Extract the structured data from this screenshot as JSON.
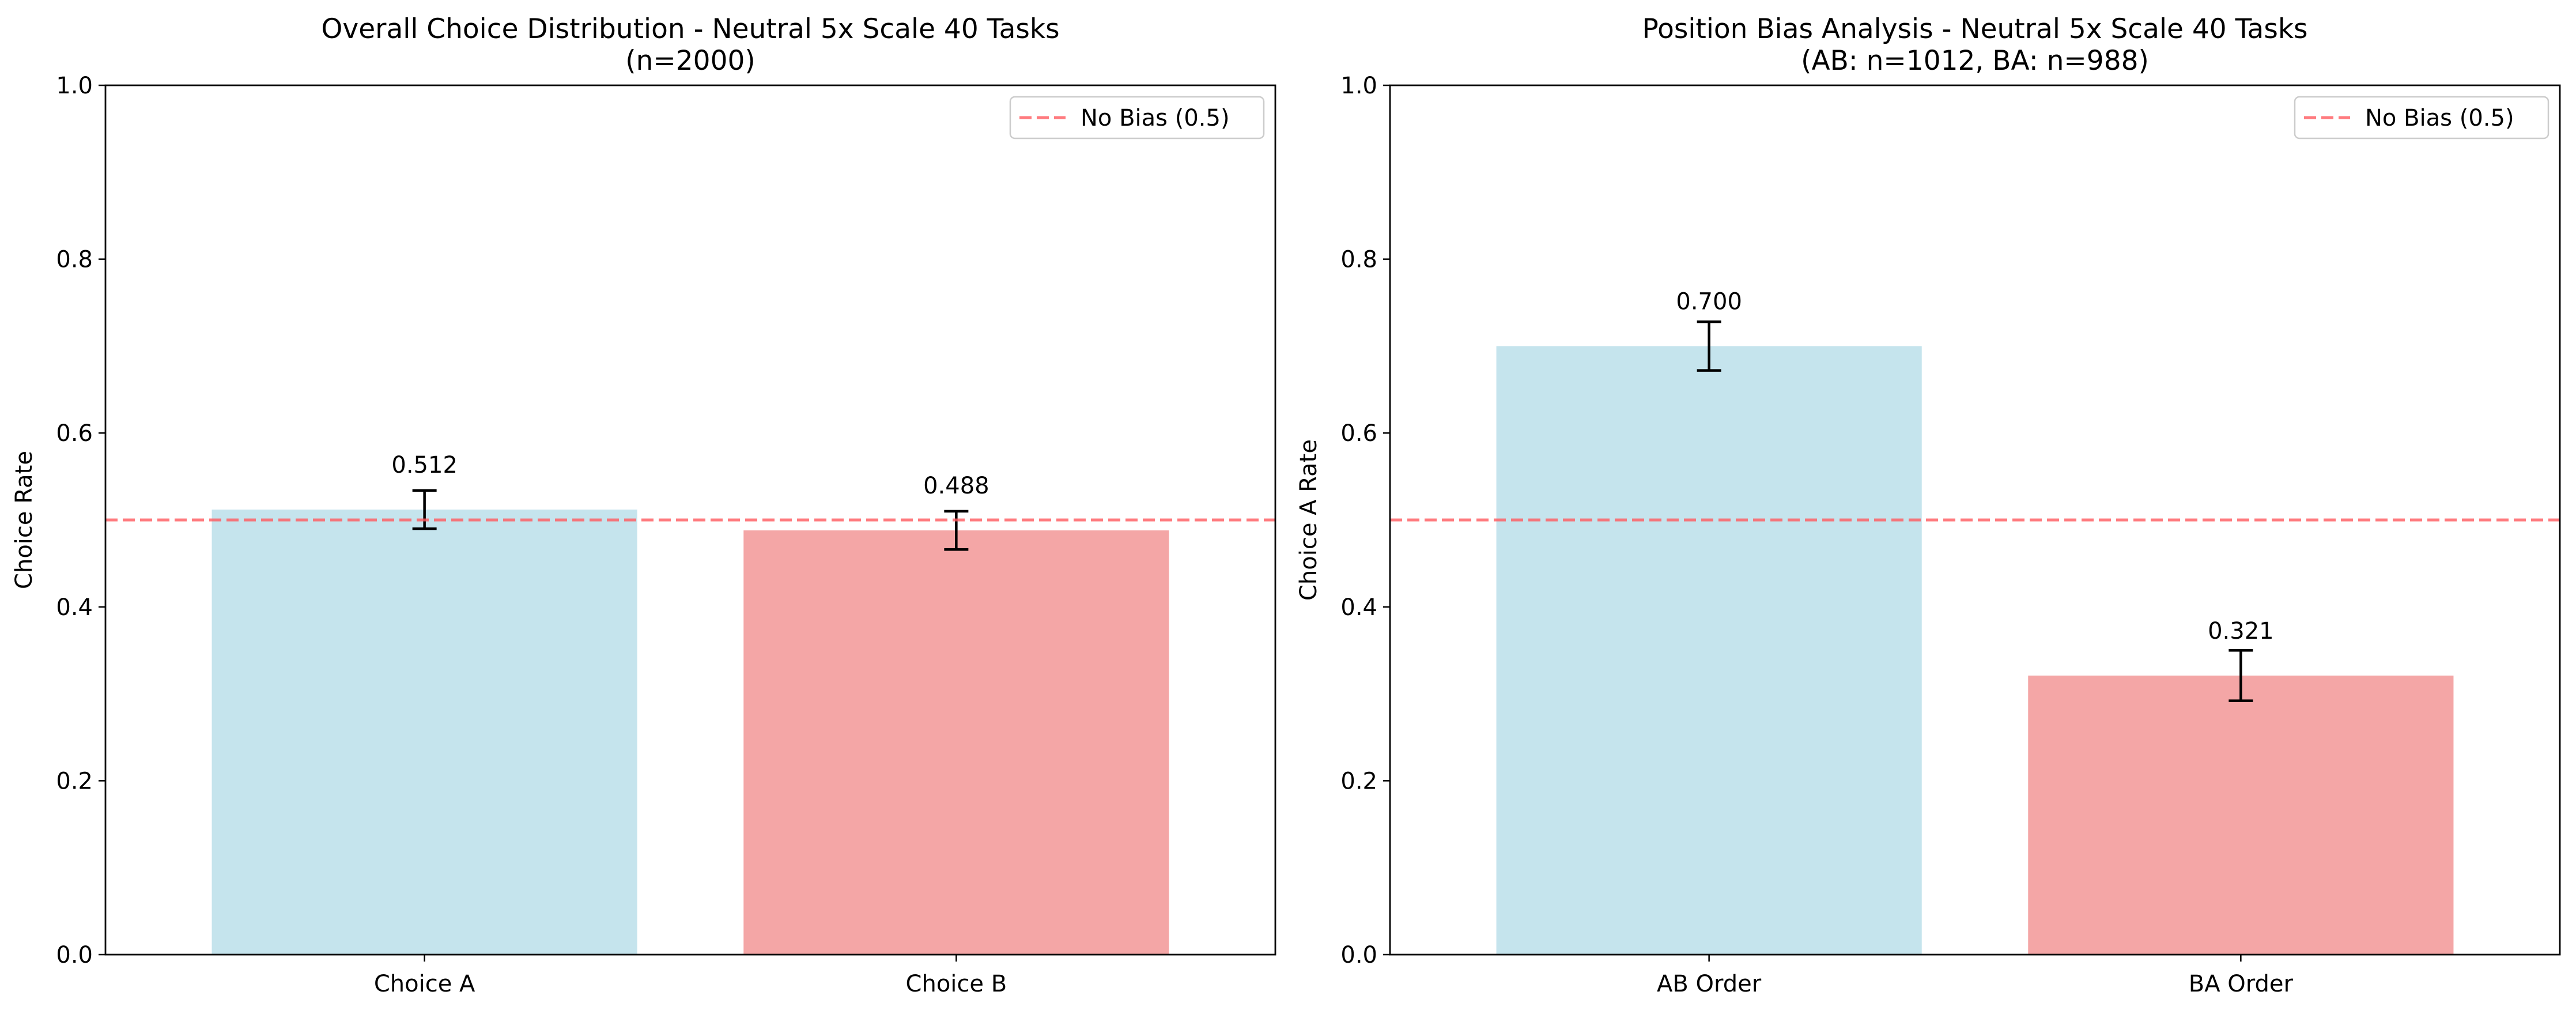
{
  "chart_data": [
    {
      "type": "bar",
      "title": "Overall Choice Distribution - Neutral 5x Scale 40 Tasks",
      "subtitle": "(n=2000)",
      "xlabel": "",
      "ylabel": "Choice Rate",
      "categories": [
        "Choice A",
        "Choice B"
      ],
      "values": [
        0.512,
        0.488
      ],
      "data_labels": [
        "0.512",
        "0.488"
      ],
      "error": [
        0.022,
        0.022
      ],
      "colors": [
        "#add8e6",
        "#f08080"
      ],
      "ylim": [
        0,
        1
      ],
      "yticks": [
        "0.0",
        "0.2",
        "0.4",
        "0.6",
        "0.8",
        "1.0"
      ],
      "reference_line": {
        "value": 0.5,
        "label": "No Bias (0.5)",
        "color": "#ff5a5f"
      },
      "legend": {
        "placement": "top-right",
        "entries": [
          "No Bias (0.5)"
        ]
      },
      "grid": false
    },
    {
      "type": "bar",
      "title": "Position Bias Analysis - Neutral 5x Scale 40 Tasks",
      "subtitle": "(AB: n=1012, BA: n=988)",
      "xlabel": "",
      "ylabel": "Choice A Rate",
      "categories": [
        "AB Order",
        "BA Order"
      ],
      "values": [
        0.7,
        0.321
      ],
      "data_labels": [
        "0.700",
        "0.321"
      ],
      "error": [
        0.028,
        0.029
      ],
      "colors": [
        "#add8e6",
        "#f08080"
      ],
      "ylim": [
        0,
        1
      ],
      "yticks": [
        "0.0",
        "0.2",
        "0.4",
        "0.6",
        "0.8",
        "1.0"
      ],
      "reference_line": {
        "value": 0.5,
        "label": "No Bias (0.5)",
        "color": "#ff5a5f"
      },
      "legend": {
        "placement": "top-right",
        "entries": [
          "No Bias (0.5)"
        ]
      },
      "grid": false
    }
  ]
}
